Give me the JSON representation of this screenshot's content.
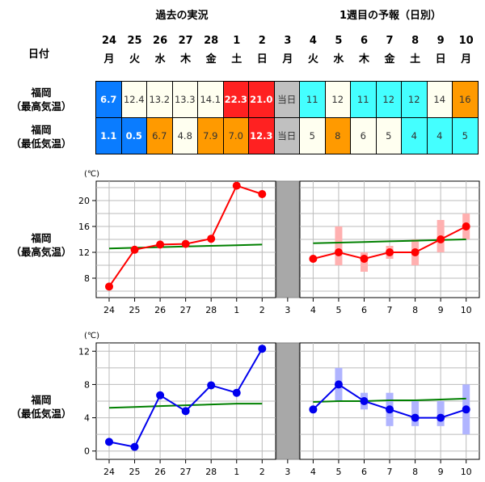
{
  "header": {
    "past_title": "過去の実況",
    "forecast_title": "1週目の予報（日別）",
    "date_label": "日付"
  },
  "days": [
    {
      "day": "24",
      "weekday": "月"
    },
    {
      "day": "25",
      "weekday": "火"
    },
    {
      "day": "26",
      "weekday": "水"
    },
    {
      "day": "27",
      "weekday": "木"
    },
    {
      "day": "28",
      "weekday": "金"
    },
    {
      "day": "1",
      "weekday": "土"
    },
    {
      "day": "2",
      "weekday": "日"
    },
    {
      "day": "3",
      "weekday": "月"
    },
    {
      "day": "4",
      "weekday": "火"
    },
    {
      "day": "5",
      "weekday": "水"
    },
    {
      "day": "6",
      "weekday": "木"
    },
    {
      "day": "7",
      "weekday": "金"
    },
    {
      "day": "8",
      "weekday": "土"
    },
    {
      "day": "9",
      "weekday": "日"
    },
    {
      "day": "10",
      "weekday": "月"
    }
  ],
  "table": {
    "rows": [
      {
        "label_line1": "福岡",
        "label_line2": "（最高気温）",
        "cells": [
          {
            "text": "6.7",
            "bg": "#0a7cff",
            "fg": "#ffffff",
            "bold": true
          },
          {
            "text": "12.4",
            "bg": "#fffff0",
            "fg": "#333333",
            "bold": false
          },
          {
            "text": "13.2",
            "bg": "#fffff0",
            "fg": "#333333",
            "bold": false
          },
          {
            "text": "13.3",
            "bg": "#fffff0",
            "fg": "#333333",
            "bold": false
          },
          {
            "text": "14.1",
            "bg": "#fffff0",
            "fg": "#333333",
            "bold": false
          },
          {
            "text": "22.3",
            "bg": "#ff2121",
            "fg": "#ffffff",
            "bold": true
          },
          {
            "text": "21.0",
            "bg": "#ff2121",
            "fg": "#ffffff",
            "bold": true
          },
          {
            "text": "当日",
            "bg": "#c0c0c0",
            "fg": "#333333",
            "bold": false
          },
          {
            "text": "11",
            "bg": "#44ffff",
            "fg": "#333333",
            "bold": false
          },
          {
            "text": "12",
            "bg": "#fffff0",
            "fg": "#333333",
            "bold": false
          },
          {
            "text": "11",
            "bg": "#44ffff",
            "fg": "#333333",
            "bold": false
          },
          {
            "text": "12",
            "bg": "#44ffff",
            "fg": "#333333",
            "bold": false
          },
          {
            "text": "12",
            "bg": "#44ffff",
            "fg": "#333333",
            "bold": false
          },
          {
            "text": "14",
            "bg": "#fffff0",
            "fg": "#333333",
            "bold": false
          },
          {
            "text": "16",
            "bg": "#ff9a00",
            "fg": "#333333",
            "bold": false
          }
        ]
      },
      {
        "label_line1": "福岡",
        "label_line2": "（最低気温）",
        "cells": [
          {
            "text": "1.1",
            "bg": "#0a7cff",
            "fg": "#ffffff",
            "bold": true
          },
          {
            "text": "0.5",
            "bg": "#0a7cff",
            "fg": "#ffffff",
            "bold": true
          },
          {
            "text": "6.7",
            "bg": "#ff9a00",
            "fg": "#333333",
            "bold": false
          },
          {
            "text": "4.8",
            "bg": "#fffff0",
            "fg": "#333333",
            "bold": false
          },
          {
            "text": "7.9",
            "bg": "#ff9a00",
            "fg": "#333333",
            "bold": false
          },
          {
            "text": "7.0",
            "bg": "#ff9a00",
            "fg": "#333333",
            "bold": false
          },
          {
            "text": "12.3",
            "bg": "#ff2121",
            "fg": "#ffffff",
            "bold": true
          },
          {
            "text": "当日",
            "bg": "#c0c0c0",
            "fg": "#333333",
            "bold": false
          },
          {
            "text": "5",
            "bg": "#fffff0",
            "fg": "#333333",
            "bold": false
          },
          {
            "text": "8",
            "bg": "#ff9a00",
            "fg": "#333333",
            "bold": false
          },
          {
            "text": "6",
            "bg": "#fffff0",
            "fg": "#333333",
            "bold": false
          },
          {
            "text": "5",
            "bg": "#fffff0",
            "fg": "#333333",
            "bold": false
          },
          {
            "text": "4",
            "bg": "#44ffff",
            "fg": "#333333",
            "bold": false
          },
          {
            "text": "4",
            "bg": "#44ffff",
            "fg": "#333333",
            "bold": false
          },
          {
            "text": "5",
            "bg": "#44ffff",
            "fg": "#333333",
            "bold": false
          }
        ]
      }
    ]
  },
  "chart_data": [
    {
      "type": "line",
      "label_line1": "福岡",
      "label_line2": "（最高気温）",
      "unit": "(℃)",
      "categories": [
        "24",
        "25",
        "26",
        "27",
        "28",
        "1",
        "2",
        "3",
        "4",
        "5",
        "6",
        "7",
        "8",
        "9",
        "10"
      ],
      "ylim": [
        5,
        23
      ],
      "yticks": [
        8,
        12,
        16,
        20
      ],
      "grid": true,
      "gap_index": 7,
      "line_color": "#ff0000",
      "range_color": "#ffb0b0",
      "normal_color": "#008000",
      "observed": [
        6.7,
        12.4,
        13.2,
        13.3,
        14.1,
        22.3,
        21.0
      ],
      "forecast": [
        null,
        null,
        null,
        null,
        null,
        null,
        null,
        null,
        11,
        12,
        11,
        12,
        12,
        14,
        16
      ],
      "forecast_range": [
        null,
        null,
        null,
        null,
        null,
        null,
        null,
        null,
        null,
        [
          10,
          16
        ],
        [
          9,
          12
        ],
        [
          11,
          13
        ],
        [
          10,
          14
        ],
        [
          12,
          17
        ],
        [
          14,
          18
        ]
      ],
      "normal": [
        12.6,
        12.7,
        12.8,
        12.9,
        13.0,
        13.1,
        13.2,
        null,
        13.4,
        13.5,
        13.6,
        13.7,
        13.8,
        13.9,
        14.0
      ]
    },
    {
      "type": "line",
      "label_line1": "福岡",
      "label_line2": "（最低気温）",
      "unit": "(℃)",
      "categories": [
        "24",
        "25",
        "26",
        "27",
        "28",
        "1",
        "2",
        "3",
        "4",
        "5",
        "6",
        "7",
        "8",
        "9",
        "10"
      ],
      "ylim": [
        -1,
        13
      ],
      "yticks": [
        0,
        4,
        8,
        12
      ],
      "grid": true,
      "gap_index": 7,
      "line_color": "#0000ee",
      "range_color": "#b0b4ff",
      "normal_color": "#008000",
      "observed": [
        1.1,
        0.5,
        6.7,
        4.8,
        7.9,
        7.0,
        12.3
      ],
      "forecast": [
        null,
        null,
        null,
        null,
        null,
        null,
        null,
        null,
        5,
        8,
        6,
        5,
        4,
        4,
        5
      ],
      "forecast_range": [
        null,
        null,
        null,
        null,
        null,
        null,
        null,
        null,
        null,
        [
          6,
          10
        ],
        [
          5,
          7
        ],
        [
          3,
          7
        ],
        [
          3,
          6
        ],
        [
          3,
          6
        ],
        [
          2,
          8
        ]
      ],
      "normal": [
        5.2,
        5.3,
        5.4,
        5.5,
        5.6,
        5.7,
        5.7,
        null,
        5.9,
        6.0,
        6.0,
        6.1,
        6.1,
        6.2,
        6.3
      ]
    }
  ]
}
